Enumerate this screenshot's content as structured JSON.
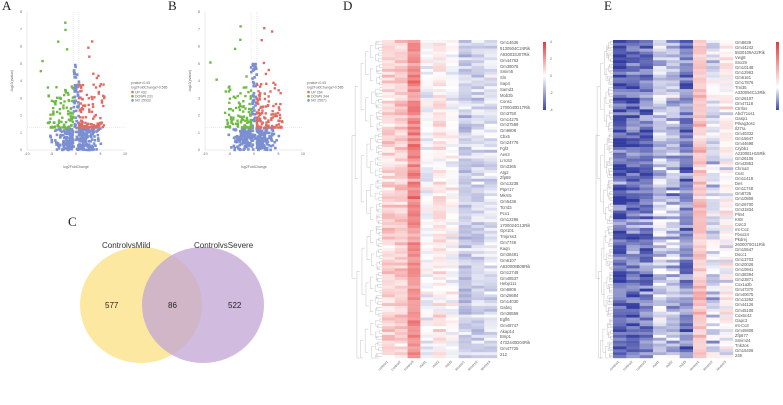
{
  "panels": {
    "a": "A",
    "b": "B",
    "c": "C",
    "d": "D",
    "e": "E"
  },
  "chart_data": [
    {
      "type": "scatter",
      "panel": "A",
      "title": "",
      "xlabel": "log2FoldChange",
      "ylabel": "-log10(pvalue)",
      "xlim": [
        -10,
        10
      ],
      "ylim": [
        0,
        8
      ],
      "xticks": [
        "-10",
        "-5",
        "0",
        "5",
        "10"
      ],
      "yticks": [
        "0",
        "1",
        "2",
        "3",
        "4",
        "5",
        "6",
        "7",
        "8"
      ],
      "thresholds": {
        "pvalue": 0.05,
        "log2fc": 0.585
      },
      "legend": {
        "title1": "pvalue<0.05",
        "title2": "log2FoldChange>0.585",
        "items": [
          {
            "label": "UP 432",
            "color": "#e06c62"
          },
          {
            "label": "DOWN 231",
            "color": "#6fba45"
          },
          {
            "label": "NO 25932",
            "color": "#7b8fd1"
          }
        ]
      },
      "series": [
        {
          "name": "UP",
          "count": 432
        },
        {
          "name": "DOWN",
          "count": 231
        },
        {
          "name": "NO",
          "count": 25932
        }
      ]
    },
    {
      "type": "scatter",
      "panel": "B",
      "title": "",
      "xlabel": "log2FoldChange",
      "ylabel": "-log10(pvalue)",
      "xlim": [
        -10,
        10
      ],
      "ylim": [
        0,
        8
      ],
      "xticks": [
        "-10",
        "-5",
        "0",
        "5",
        "10"
      ],
      "yticks": [
        "0",
        "1",
        "2",
        "3",
        "4",
        "5",
        "6",
        "7",
        "8"
      ],
      "thresholds": {
        "pvalue": 0.05,
        "log2fc": 0.585
      },
      "legend": {
        "title1": "pvalue<0.05",
        "title2": "log2FoldChange>0.585",
        "items": [
          {
            "label": "UP 264",
            "color": "#e06c62"
          },
          {
            "label": "DOWN 344",
            "color": "#6fba45"
          },
          {
            "label": "NO 25671",
            "color": "#7b8fd1"
          }
        ]
      },
      "series": [
        {
          "name": "UP",
          "count": 264
        },
        {
          "name": "DOWN",
          "count": 344
        },
        {
          "name": "NO",
          "count": 25671
        }
      ]
    },
    {
      "type": "venn",
      "panel": "C",
      "sets": [
        {
          "name": "ControlvsMild",
          "only": 577,
          "color": "#fde79c"
        },
        {
          "name": "ControlvsSevere",
          "only": 522,
          "color": "#c2a6d4"
        }
      ],
      "intersection": 86
    },
    {
      "type": "heatmap",
      "panel": "D",
      "columns": [
        "control1",
        "control2",
        "control3",
        "mild1",
        "mild2",
        "mild3",
        "severe1",
        "severe2",
        "severe3"
      ],
      "colorbar": {
        "ticks": [
          "4",
          "2",
          "0",
          "-2",
          "-4"
        ],
        "range": [
          -4,
          4
        ]
      },
      "rows": [
        "Gm14636",
        "5130504C24Rik",
        "A930033J07Rik",
        "Gm44763",
        "Gm38075",
        "Smim5",
        "Sln",
        "Sap4",
        "Samd3",
        "Mob3b",
        "Cons1",
        "1700040D17Rik",
        "Gm3750",
        "Gm14275",
        "Gm37589",
        "Gm9808",
        "Cbx5",
        "Gm24776",
        "Fgf3",
        "Aes3",
        "Lrrc63",
        "Gm3365",
        "Atg2",
        "Zfp69",
        "Gm13238",
        "Ptprr17",
        "Mkrn5",
        "Gm5436",
        "Tcrrd3",
        "Pcx1",
        "Gm12296",
        "1700024G13Rik",
        "Gpr101",
        "Tmprss3",
        "Gm7748",
        "Kaqn",
        "Gm38481",
        "Gm6107",
        "A830008B08Rik",
        "Gm12749",
        "Gm48537",
        "Hebp111",
        "Gm6806",
        "Gm28684",
        "Gm14030",
        "Gabrq",
        "Gm38558",
        "Egfl6",
        "Gm48747",
        "Akap14",
        "Bmp1",
        "4732440D04Rik",
        "Gm47725",
        "212"
      ],
      "column_bias": [
        0.8,
        1.0,
        2.2,
        -0.2,
        0.4,
        0.0,
        -1.0,
        -0.8,
        -0.6
      ]
    },
    {
      "type": "heatmap",
      "panel": "E",
      "columns": [
        "control1",
        "control2",
        "control3",
        "mild1",
        "mild2",
        "mild3",
        "severe1",
        "severe2",
        "severe3"
      ],
      "colorbar": {
        "ticks": [
          "4",
          "2",
          "0",
          "-2"
        ],
        "range": [
          -2,
          4
        ]
      },
      "rows": [
        "Gm8639",
        "Gm44242",
        "5830109A22Rik",
        "Vwg8",
        "Snx29",
        "Gm10148",
        "Gm12963",
        "Gm6161",
        "Gm17876",
        "Tmi35",
        "A330094C13Rik",
        "Gm26107",
        "Gm47118",
        "Ctrrlos",
        "Abcf71os1",
        "Gasp1",
        "Prkag3os1",
        "Il27ra",
        "Gm40332",
        "Gm15647",
        "Gm44698",
        "Crybb1",
        "A230081H15Rik",
        "Gm26106",
        "Gm42853",
        "Chrna3",
        "Cnst",
        "Gm11418",
        "Des",
        "Gm11748",
        "Gm8735",
        "Gm10808",
        "Gm26700",
        "Gm31834",
        "Plin4",
        "Krt8",
        "Cotc3",
        "mt-Co2",
        "Fbxo24",
        "Pkdrej",
        "2600070G11Rik",
        "Gm15547",
        "Dscc1",
        "Gm13703",
        "Gm20026",
        "Gm10941",
        "Gm38394",
        "Gm23871",
        "Cox1a2b",
        "Gm47370",
        "Gm40675",
        "Gm13262",
        "Gm44126",
        "Gm45106",
        "Cox6c42",
        "Gapc3",
        "mt-Co3",
        "Gm45808",
        "Zfp677",
        "Smim24",
        "Tnk2os",
        "Gm15406",
        "249"
      ],
      "column_bias": [
        -1.6,
        -1.4,
        -1.3,
        -0.5,
        -0.6,
        -1.2,
        1.2,
        -0.3,
        0.2
      ]
    }
  ]
}
